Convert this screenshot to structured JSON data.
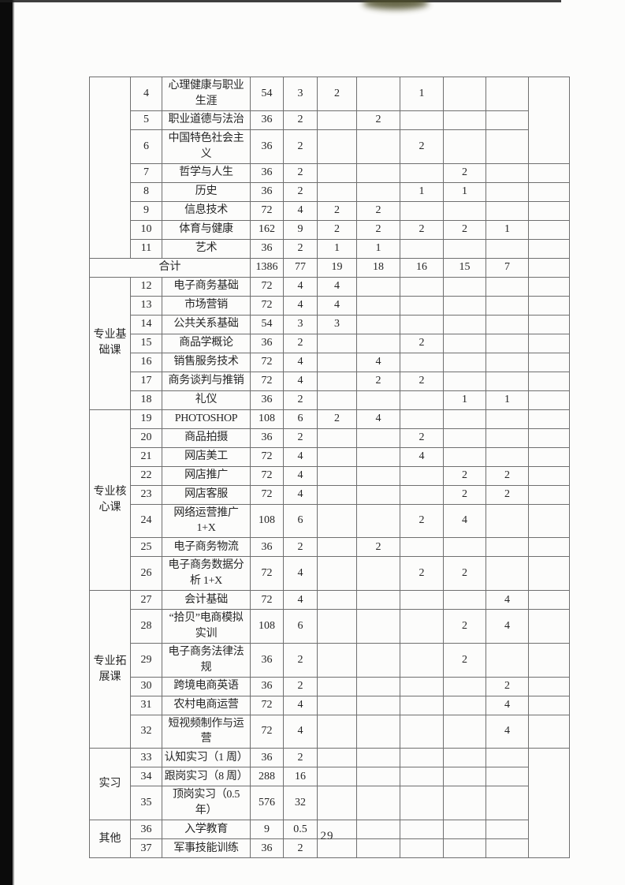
{
  "page": {
    "number": "29"
  },
  "table": {
    "summary_row": {
      "label": "合计",
      "hours": "1386",
      "credits": "77",
      "sems": [
        "19",
        "18",
        "16",
        "15",
        "7",
        ""
      ]
    },
    "sections": [
      {
        "category": "",
        "rows": [
          {
            "num": "4",
            "name": "心理健康与职业生涯",
            "hours": "54",
            "credits": "3",
            "sems": [
              "2",
              "",
              "1",
              "",
              "",
              ""
            ]
          },
          {
            "num": "5",
            "name": "职业道德与法治",
            "hours": "36",
            "credits": "2",
            "sems": [
              "",
              "2",
              "",
              "",
              "",
              ""
            ]
          },
          {
            "num": "6",
            "name": "中国特色社会主义",
            "hours": "36",
            "credits": "2",
            "sems": [
              "",
              "",
              "2",
              "",
              "",
              ""
            ]
          },
          {
            "num": "7",
            "name": "哲学与人生",
            "hours": "36",
            "credits": "2",
            "sems": [
              "",
              "",
              "",
              "2",
              "",
              ""
            ]
          },
          {
            "num": "8",
            "name": "历史",
            "hours": "36",
            "credits": "2",
            "sems": [
              "",
              "",
              "1",
              "1",
              "",
              ""
            ]
          },
          {
            "num": "9",
            "name": "信息技术",
            "hours": "72",
            "credits": "4",
            "sems": [
              "2",
              "2",
              "",
              "",
              "",
              ""
            ]
          },
          {
            "num": "10",
            "name": "体育与健康",
            "hours": "162",
            "credits": "9",
            "sems": [
              "2",
              "2",
              "2",
              "2",
              "1",
              ""
            ]
          },
          {
            "num": "11",
            "name": "艺术",
            "hours": "36",
            "credits": "2",
            "sems": [
              "1",
              "1",
              "",
              "",
              "",
              ""
            ]
          }
        ]
      },
      {
        "type": "total"
      },
      {
        "category": "专业基础课",
        "rows": [
          {
            "num": "12",
            "name": "电子商务基础",
            "hours": "72",
            "credits": "4",
            "sems": [
              "4",
              "",
              "",
              "",
              "",
              ""
            ]
          },
          {
            "num": "13",
            "name": "市场营销",
            "hours": "72",
            "credits": "4",
            "sems": [
              "4",
              "",
              "",
              "",
              "",
              ""
            ]
          },
          {
            "num": "14",
            "name": "公共关系基础",
            "hours": "54",
            "credits": "3",
            "sems": [
              "3",
              "",
              "",
              "",
              "",
              ""
            ]
          },
          {
            "num": "15",
            "name": "商品学概论",
            "hours": "36",
            "credits": "2",
            "sems": [
              "",
              "",
              "2",
              "",
              "",
              ""
            ]
          },
          {
            "num": "16",
            "name": "销售服务技术",
            "hours": "72",
            "credits": "4",
            "sems": [
              "",
              "4",
              "",
              "",
              "",
              ""
            ]
          },
          {
            "num": "17",
            "name": "商务谈判与推销",
            "hours": "72",
            "credits": "4",
            "sems": [
              "",
              "2",
              "2",
              "",
              "",
              ""
            ]
          },
          {
            "num": "18",
            "name": "礼仪",
            "hours": "36",
            "credits": "2",
            "sems": [
              "",
              "",
              "",
              "1",
              "1",
              ""
            ]
          }
        ]
      },
      {
        "category": "专业核心课",
        "rows": [
          {
            "num": "19",
            "name": "PHOTOSHOP",
            "hours": "108",
            "credits": "6",
            "sems": [
              "2",
              "4",
              "",
              "",
              "",
              ""
            ]
          },
          {
            "num": "20",
            "name": "商品拍摄",
            "hours": "36",
            "credits": "2",
            "sems": [
              "",
              "",
              "2",
              "",
              "",
              ""
            ]
          },
          {
            "num": "21",
            "name": "网店美工",
            "hours": "72",
            "credits": "4",
            "sems": [
              "",
              "",
              "4",
              "",
              "",
              ""
            ]
          },
          {
            "num": "22",
            "name": "网店推广",
            "hours": "72",
            "credits": "4",
            "sems": [
              "",
              "",
              "",
              "2",
              "2",
              ""
            ]
          },
          {
            "num": "23",
            "name": "网店客服",
            "hours": "72",
            "credits": "4",
            "sems": [
              "",
              "",
              "",
              "2",
              "2",
              ""
            ]
          },
          {
            "num": "24",
            "name": "网络运营推广 1+X",
            "hours": "108",
            "credits": "6",
            "sems": [
              "",
              "",
              "2",
              "4",
              "",
              ""
            ]
          },
          {
            "num": "25",
            "name": "电子商务物流",
            "hours": "36",
            "credits": "2",
            "sems": [
              "",
              "2",
              "",
              "",
              "",
              ""
            ]
          },
          {
            "num": "26",
            "name": "电子商务数据分析 1+X",
            "hours": "72",
            "credits": "4",
            "sems": [
              "",
              "",
              "2",
              "2",
              "",
              ""
            ]
          }
        ]
      },
      {
        "category": "专业拓展课",
        "rows": [
          {
            "num": "27",
            "name": "会计基础",
            "hours": "72",
            "credits": "4",
            "sems": [
              "",
              "",
              "",
              "",
              "4",
              ""
            ]
          },
          {
            "num": "28",
            "name": "“拾贝”电商模拟实训",
            "hours": "108",
            "credits": "6",
            "sems": [
              "",
              "",
              "",
              "2",
              "4",
              ""
            ]
          },
          {
            "num": "29",
            "name": "电子商务法律法规",
            "hours": "36",
            "credits": "2",
            "sems": [
              "",
              "",
              "",
              "2",
              "",
              ""
            ]
          },
          {
            "num": "30",
            "name": "跨境电商英语",
            "hours": "36",
            "credits": "2",
            "sems": [
              "",
              "",
              "",
              "",
              "2",
              ""
            ]
          },
          {
            "num": "31",
            "name": "农村电商运营",
            "hours": "72",
            "credits": "4",
            "sems": [
              "",
              "",
              "",
              "",
              "4",
              ""
            ]
          },
          {
            "num": "32",
            "name": "短视频制作与运营",
            "hours": "72",
            "credits": "4",
            "sems": [
              "",
              "",
              "",
              "",
              "4",
              ""
            ]
          }
        ]
      },
      {
        "category": "实习",
        "rows": [
          {
            "num": "33",
            "name": "认知实习（1 周）",
            "hours": "36",
            "credits": "2",
            "sems": [
              "",
              "",
              "",
              "",
              "",
              ""
            ]
          },
          {
            "num": "34",
            "name": "跟岗实习（8 周）",
            "hours": "288",
            "credits": "16",
            "sems": [
              "",
              "",
              "",
              "",
              "",
              ""
            ]
          },
          {
            "num": "35",
            "name": "顶岗实习（0.5 年）",
            "hours": "576",
            "credits": "32",
            "sems": [
              "",
              "",
              "",
              "",
              "",
              ""
            ]
          }
        ]
      },
      {
        "category": "其他",
        "rows": [
          {
            "num": "36",
            "name": "入学教育",
            "hours": "9",
            "credits": "0.5",
            "sems": [
              "",
              "",
              "",
              "",
              "",
              ""
            ]
          },
          {
            "num": "37",
            "name": "军事技能训练",
            "hours": "36",
            "credits": "2",
            "sems": [
              "",
              "",
              "",
              "",
              "",
              ""
            ]
          }
        ]
      }
    ]
  }
}
